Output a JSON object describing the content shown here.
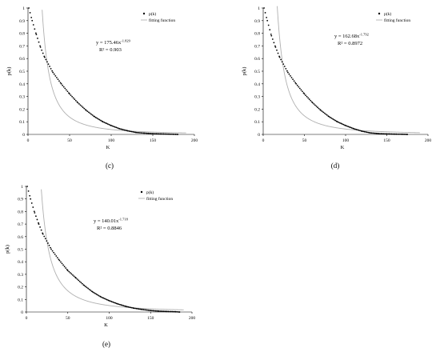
{
  "chart_data": [
    {
      "type": "scatter",
      "panel_label": "(c)",
      "xlabel": "K",
      "ylabel": "p(k)",
      "xlim": [
        0,
        200
      ],
      "ylim": [
        0,
        1
      ],
      "x_ticks": [
        "0",
        "50",
        "100",
        "150",
        "200"
      ],
      "y_ticks": [
        "0",
        "0.1",
        "0.2",
        "0.3",
        "0.4",
        "0.5",
        "0.6",
        "0.7",
        "0.8",
        "0.9",
        "1"
      ],
      "legend": [
        "p(k)",
        "fitting function"
      ],
      "legend_position": "top-right",
      "equation": {
        "prefix": "y = 175.46x",
        "exponent": "-1.829",
        "r2": "R² = 0.903"
      },
      "fit": {
        "a": 175.46,
        "b": -1.829
      },
      "series": [
        {
          "name": "p(k)",
          "x": [
            1,
            5,
            10,
            15,
            20,
            30,
            40,
            50,
            60,
            70,
            80,
            90,
            100,
            110,
            120,
            130,
            140,
            150,
            160,
            170,
            180
          ],
          "y": [
            1.0,
            0.9,
            0.79,
            0.69,
            0.61,
            0.49,
            0.4,
            0.32,
            0.25,
            0.19,
            0.14,
            0.1,
            0.07,
            0.045,
            0.028,
            0.015,
            0.01,
            0.006,
            0.004,
            0.002,
            0.0
          ]
        }
      ]
    },
    {
      "type": "scatter",
      "panel_label": "(d)",
      "xlabel": "K",
      "ylabel": "p(k)",
      "xlim": [
        0,
        200
      ],
      "ylim": [
        0,
        1
      ],
      "x_ticks": [
        "0",
        "50",
        "100",
        "150",
        "200"
      ],
      "y_ticks": [
        "0",
        "0.1",
        "0.2",
        "0.3",
        "0.4",
        "0.5",
        "0.6",
        "0.7",
        "0.8",
        "0.9",
        "1"
      ],
      "legend": [
        "p(k)",
        "fitting function"
      ],
      "legend_position": "top-right",
      "equation": {
        "prefix": "y = 162.68x",
        "exponent": "-1.792",
        "r2": "R² = 0.8972"
      },
      "fit": {
        "a": 162.68,
        "b": -1.792
      },
      "series": [
        {
          "name": "p(k)",
          "x": [
            1,
            5,
            10,
            15,
            20,
            30,
            40,
            50,
            60,
            70,
            80,
            90,
            100,
            110,
            120,
            130,
            140,
            150,
            160,
            170,
            175
          ],
          "y": [
            1.0,
            0.9,
            0.78,
            0.69,
            0.61,
            0.49,
            0.4,
            0.32,
            0.25,
            0.19,
            0.14,
            0.1,
            0.07,
            0.045,
            0.025,
            0.012,
            0.006,
            0.004,
            0.002,
            0.001,
            0.0
          ]
        }
      ]
    },
    {
      "type": "scatter",
      "panel_label": "(e)",
      "xlabel": "K",
      "ylabel": "p(k)",
      "xlim": [
        0,
        200
      ],
      "ylim": [
        0,
        1
      ],
      "x_ticks": [
        "0",
        "50",
        "100",
        "150",
        "200"
      ],
      "y_ticks": [
        "0",
        "0.1",
        "0.2",
        "0.3",
        "0.4",
        "0.5",
        "0.6",
        "0.7",
        "0.8",
        "0.9",
        "1"
      ],
      "legend": [
        "p(k)",
        "fitting function"
      ],
      "legend_position": "top-right",
      "equation": {
        "prefix": "y = 140.01x",
        "exponent": "-1.718",
        "r2": "R² = 0.8846"
      },
      "fit": {
        "a": 140.01,
        "b": -1.718
      },
      "series": [
        {
          "name": "p(k)",
          "x": [
            1,
            5,
            10,
            15,
            20,
            30,
            40,
            50,
            60,
            70,
            80,
            90,
            100,
            110,
            120,
            130,
            140,
            150,
            160,
            170,
            180,
            185
          ],
          "y": [
            1.0,
            0.9,
            0.79,
            0.7,
            0.62,
            0.5,
            0.41,
            0.33,
            0.27,
            0.21,
            0.16,
            0.12,
            0.09,
            0.065,
            0.045,
            0.03,
            0.02,
            0.012,
            0.007,
            0.004,
            0.002,
            0.0
          ]
        }
      ]
    }
  ]
}
